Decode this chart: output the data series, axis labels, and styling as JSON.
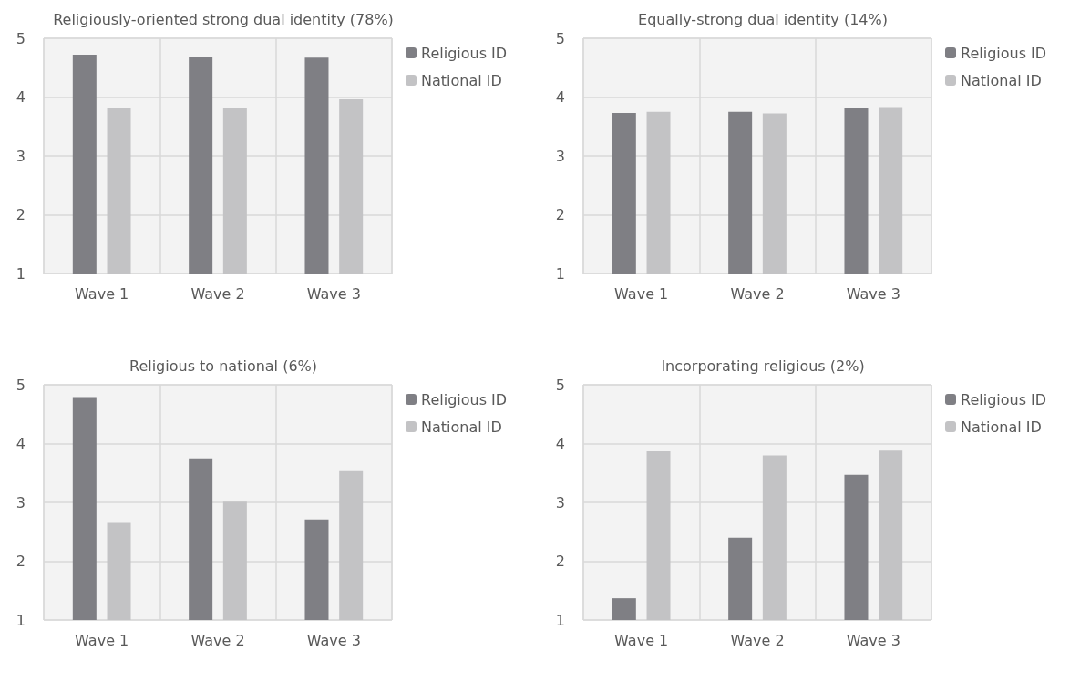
{
  "chart_data": [
    {
      "type": "bar",
      "title": "Religiously-oriented strong dual identity (78%)",
      "categories": [
        "Wave 1",
        "Wave 2",
        "Wave 3"
      ],
      "series": [
        {
          "name": "Religious ID",
          "color": "#7f7f84",
          "values": [
            4.72,
            4.68,
            4.67
          ]
        },
        {
          "name": "National ID",
          "color": "#c3c3c5",
          "values": [
            3.81,
            3.81,
            3.96
          ]
        }
      ],
      "ylim": [
        1,
        5
      ],
      "yticks": [
        1,
        2,
        3,
        4,
        5
      ],
      "grid": true,
      "legend": "top right"
    },
    {
      "type": "bar",
      "title": "Equally-strong dual identity (14%)",
      "categories": [
        "Wave 1",
        "Wave 2",
        "Wave 3"
      ],
      "series": [
        {
          "name": "Religious ID",
          "color": "#7f7f84",
          "values": [
            3.73,
            3.75,
            3.81
          ]
        },
        {
          "name": "National ID",
          "color": "#c3c3c5",
          "values": [
            3.75,
            3.72,
            3.83
          ]
        }
      ],
      "ylim": [
        1,
        5
      ],
      "yticks": [
        1,
        2,
        3,
        4,
        5
      ],
      "grid": true,
      "legend": "top right"
    },
    {
      "type": "bar",
      "title": "Religious to national (6%)",
      "categories": [
        "Wave 1",
        "Wave 2",
        "Wave 3"
      ],
      "series": [
        {
          "name": "Religious ID",
          "color": "#7f7f84",
          "values": [
            4.79,
            3.75,
            2.71
          ]
        },
        {
          "name": "National ID",
          "color": "#c3c3c5",
          "values": [
            2.65,
            3.01,
            3.53
          ]
        }
      ],
      "ylim": [
        1,
        5
      ],
      "yticks": [
        1,
        2,
        3,
        4,
        5
      ],
      "grid": true,
      "legend": "top right"
    },
    {
      "type": "bar",
      "title": "Incorporating religious (2%)",
      "categories": [
        "Wave 1",
        "Wave 2",
        "Wave 3"
      ],
      "series": [
        {
          "name": "Religious ID",
          "color": "#7f7f84",
          "values": [
            1.37,
            2.4,
            3.47
          ]
        },
        {
          "name": "National ID",
          "color": "#c3c3c5",
          "values": [
            3.87,
            3.8,
            3.88
          ]
        }
      ],
      "ylim": [
        1,
        5
      ],
      "yticks": [
        1,
        2,
        3,
        4,
        5
      ],
      "grid": true,
      "legend": "top right"
    }
  ]
}
